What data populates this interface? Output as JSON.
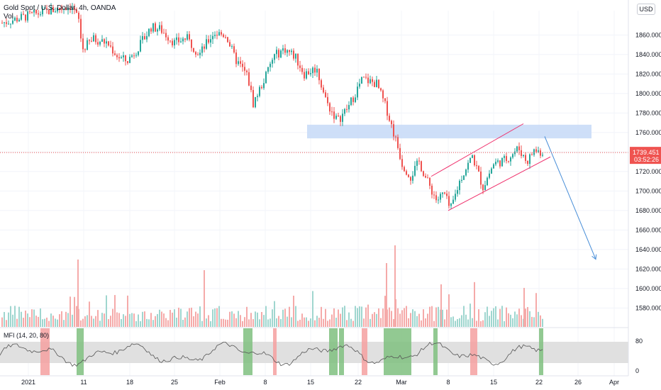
{
  "header": {
    "symbol_title": "Gold Spot / U.S. Dollar, 4h, OANDA",
    "vol_label": "Vol",
    "currency_button": "USD"
  },
  "mfi": {
    "label": "MFI (14, 20, 80)",
    "upper": "80",
    "lower": "0"
  },
  "price_tag": {
    "price": "1739.451",
    "countdown": "03:52:26"
  },
  "colors": {
    "up": "#26a69a",
    "down": "#ef5350",
    "vol_up": "#9fd6cf",
    "vol_down": "#f5aaa9",
    "zone": "#c9dbf7",
    "channel": "#ef2f6b",
    "arrow": "#4a8fd8",
    "mfi_line": "#555555",
    "mfi_band": "#e0e0e0",
    "mfi_green": "#7fbf7f",
    "mfi_red": "#f4a0a0",
    "tag": "#ef5350"
  },
  "chart_data": {
    "type": "candlestick",
    "title": "Gold Spot / U.S. Dollar, 4h, OANDA",
    "ylim": [
      1565,
      1885
    ],
    "y_ticks": [
      "1860.000",
      "1840.000",
      "1820.000",
      "1800.000",
      "1780.000",
      "1760.000",
      "1740.000",
      "1720.000",
      "1700.000",
      "1680.000",
      "1660.000",
      "1640.000",
      "1620.000",
      "1600.000",
      "1580.000"
    ],
    "x_ticks": [
      "2021",
      "11",
      "18",
      "25",
      "Feb",
      "8",
      "15",
      "22",
      "Mar",
      "8",
      "15",
      "22",
      "26",
      "Apr"
    ],
    "price_path": [
      {
        "x": 0,
        "price": 1872
      },
      {
        "x": 40,
        "price": 1880
      },
      {
        "x": 100,
        "price": 1890
      },
      {
        "x": 110,
        "price": 1875
      },
      {
        "x": 115,
        "price": 1845
      },
      {
        "x": 130,
        "price": 1856
      },
      {
        "x": 150,
        "price": 1852
      },
      {
        "x": 165,
        "price": 1838
      },
      {
        "x": 178,
        "price": 1833
      },
      {
        "x": 195,
        "price": 1848
      },
      {
        "x": 212,
        "price": 1868
      },
      {
        "x": 225,
        "price": 1866
      },
      {
        "x": 245,
        "price": 1852
      },
      {
        "x": 262,
        "price": 1857
      },
      {
        "x": 280,
        "price": 1840
      },
      {
        "x": 300,
        "price": 1862
      },
      {
        "x": 318,
        "price": 1860
      },
      {
        "x": 330,
        "price": 1836
      },
      {
        "x": 348,
        "price": 1818
      },
      {
        "x": 356,
        "price": 1790
      },
      {
        "x": 372,
        "price": 1815
      },
      {
        "x": 385,
        "price": 1838
      },
      {
        "x": 400,
        "price": 1846
      },
      {
        "x": 415,
        "price": 1838
      },
      {
        "x": 428,
        "price": 1820
      },
      {
        "x": 445,
        "price": 1826
      },
      {
        "x": 460,
        "price": 1790
      },
      {
        "x": 475,
        "price": 1772
      },
      {
        "x": 490,
        "price": 1786
      },
      {
        "x": 510,
        "price": 1815
      },
      {
        "x": 530,
        "price": 1810
      },
      {
        "x": 545,
        "price": 1782
      },
      {
        "x": 560,
        "price": 1745
      },
      {
        "x": 566,
        "price": 1728
      },
      {
        "x": 578,
        "price": 1715
      },
      {
        "x": 590,
        "price": 1730
      },
      {
        "x": 600,
        "price": 1712
      },
      {
        "x": 615,
        "price": 1690
      },
      {
        "x": 625,
        "price": 1698
      },
      {
        "x": 634,
        "price": 1680
      },
      {
        "x": 648,
        "price": 1712
      },
      {
        "x": 665,
        "price": 1736
      },
      {
        "x": 680,
        "price": 1704
      },
      {
        "x": 695,
        "price": 1728
      },
      {
        "x": 712,
        "price": 1732
      },
      {
        "x": 730,
        "price": 1744
      },
      {
        "x": 742,
        "price": 1730
      },
      {
        "x": 752,
        "price": 1742
      },
      {
        "x": 766,
        "price": 1739
      }
    ],
    "supply_zone": {
      "x_from": 433,
      "x_to": 834,
      "price_low": 1754,
      "price_high": 1768
    },
    "channel_upper": [
      {
        "x": 608,
        "price": 1715
      },
      {
        "x": 738,
        "price": 1769
      }
    ],
    "channel_lower": [
      {
        "x": 632,
        "price": 1680
      },
      {
        "x": 776,
        "price": 1735
      }
    ],
    "forecast_arrow": [
      {
        "x": 768,
        "price": 1756
      },
      {
        "x": 840,
        "price": 1630
      }
    ],
    "current_price": 1739.451,
    "mfi_highlights": [
      {
        "x_from": 57,
        "x_to": 70,
        "kind": "red"
      },
      {
        "x_from": 108,
        "x_to": 118,
        "kind": "green"
      },
      {
        "x_from": 343,
        "x_to": 356,
        "kind": "green"
      },
      {
        "x_from": 385,
        "x_to": 390,
        "kind": "red"
      },
      {
        "x_from": 464,
        "x_to": 476,
        "kind": "green"
      },
      {
        "x_from": 478,
        "x_to": 485,
        "kind": "green"
      },
      {
        "x_from": 510,
        "x_to": 518,
        "kind": "red"
      },
      {
        "x_from": 541,
        "x_to": 580,
        "kind": "green"
      },
      {
        "x_from": 611,
        "x_to": 617,
        "kind": "green"
      },
      {
        "x_from": 663,
        "x_to": 673,
        "kind": "red"
      },
      {
        "x_from": 760,
        "x_to": 766,
        "kind": "green"
      }
    ]
  }
}
